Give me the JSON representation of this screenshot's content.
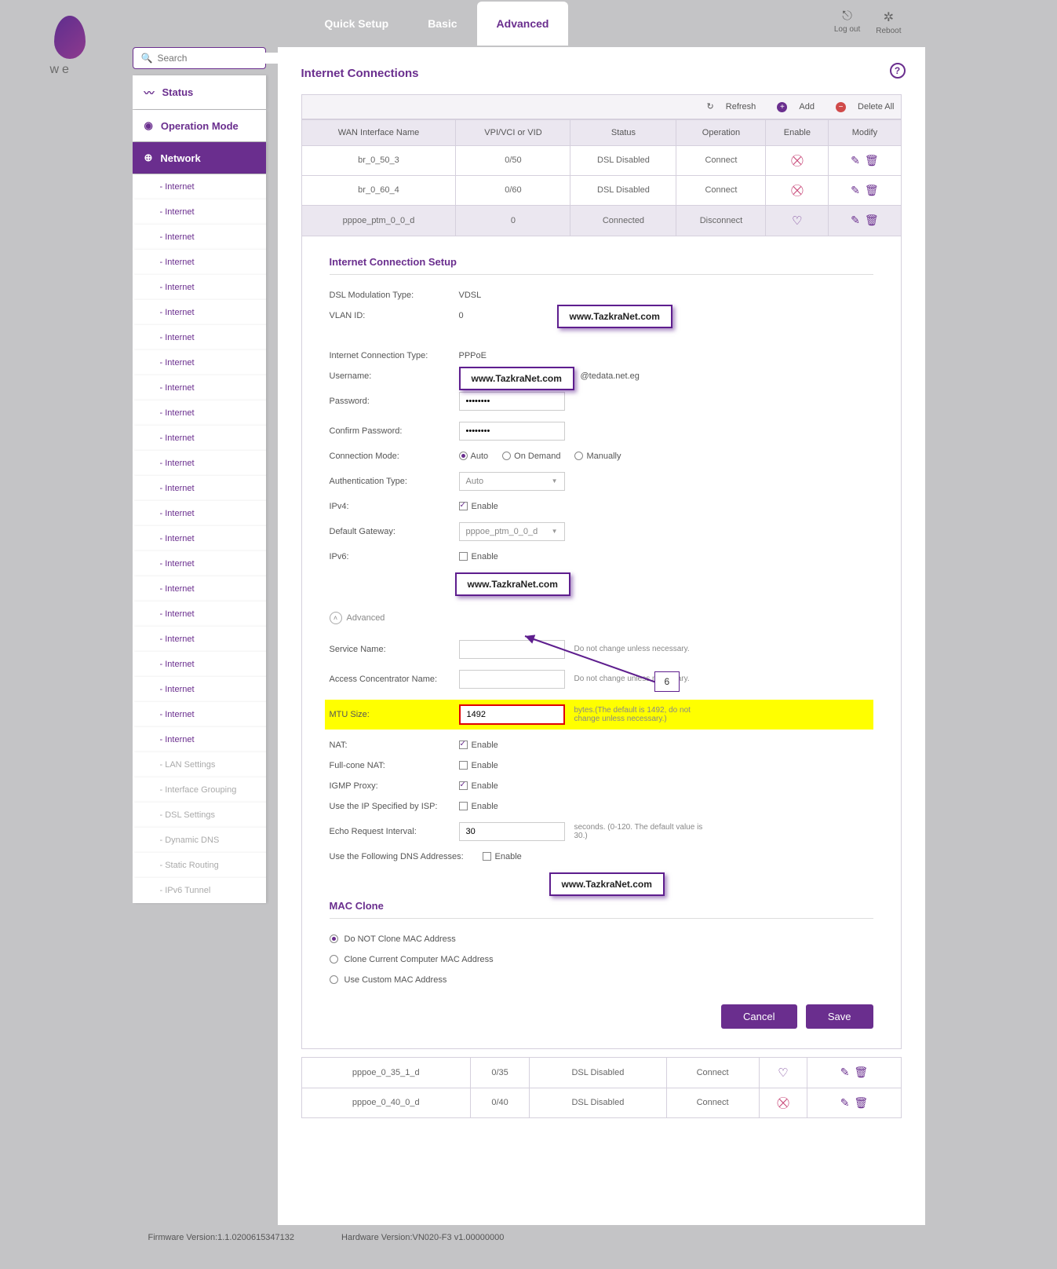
{
  "brand": {
    "name": "we"
  },
  "topnav": {
    "tabs": [
      "Quick Setup",
      "Basic",
      "Advanced"
    ],
    "active_index": 2,
    "actions": {
      "logout": "Log out",
      "reboot": "Reboot"
    }
  },
  "search": {
    "placeholder": "Search"
  },
  "sidebar": {
    "items": [
      {
        "icon": "status",
        "label": "Status"
      },
      {
        "icon": "operation",
        "label": "Operation Mode"
      },
      {
        "icon": "network",
        "label": "Network",
        "active": true
      }
    ],
    "subs": [
      "- Internet",
      "- Internet",
      "- Internet",
      "- Internet",
      "- Internet",
      "- Internet",
      "- Internet",
      "- Internet",
      "- Internet",
      "- Internet",
      "- Internet",
      "- Internet",
      "- Internet",
      "- Internet",
      "- Internet",
      "- Internet",
      "- Internet",
      "- Internet",
      "- Internet",
      "- Internet",
      "- Internet",
      "- Internet",
      "- Internet"
    ],
    "subs_disabled": [
      "- LAN Settings",
      "- Interface Grouping",
      "- DSL Settings",
      "- Dynamic DNS",
      "- Static Routing",
      "- IPv6 Tunnel"
    ]
  },
  "page": {
    "title": "Internet Connections",
    "toolbar": {
      "refresh": "Refresh",
      "add": "Add",
      "delete_all": "Delete All"
    },
    "table": {
      "headers": [
        "WAN Interface Name",
        "VPI/VCI or VID",
        "Status",
        "Operation",
        "Enable",
        "Modify"
      ],
      "rows": [
        {
          "name": "br_0_50_3",
          "vpi": "0/50",
          "status": "DSL Disabled",
          "op": "Connect",
          "op_class": "op-connect",
          "enable": "off"
        },
        {
          "name": "br_0_60_4",
          "vpi": "0/60",
          "status": "DSL Disabled",
          "op": "Connect",
          "op_class": "op-connect",
          "enable": "off"
        },
        {
          "name": "pppoe_ptm_0_0_d",
          "vpi": "0",
          "status": "Connected",
          "op": "Disconnect",
          "op_class": "op-disconnect",
          "enable": "on",
          "selected": true
        }
      ],
      "rows_after": [
        {
          "name": "pppoe_0_35_1_d",
          "vpi": "0/35",
          "status": "DSL Disabled",
          "op": "Connect",
          "op_class": "op-connect",
          "enable": "on"
        },
        {
          "name": "pppoe_0_40_0_d",
          "vpi": "0/40",
          "status": "DSL Disabled",
          "op": "Connect",
          "op_class": "op-connect",
          "enable": "off"
        }
      ]
    },
    "setup": {
      "title": "Internet Connection Setup",
      "dsl_type_label": "DSL Modulation Type:",
      "dsl_type_value": "VDSL",
      "vlan_label": "VLAN ID:",
      "vlan_value": "0",
      "conn_type_label": "Internet Connection Type:",
      "conn_type_value": "PPPoE",
      "username_label": "Username:",
      "username_suffix": "@tedata.net.eg",
      "password_label": "Password:",
      "password_value": "••••••••",
      "confirm_label": "Confirm Password:",
      "confirm_value": "••••••••",
      "connmode_label": "Connection Mode:",
      "connmode_options": [
        "Auto",
        "On Demand",
        "Manually"
      ],
      "connmode_selected": 0,
      "auth_label": "Authentication Type:",
      "auth_value": "Auto",
      "ipv4_label": "IPv4:",
      "ipv4_checked": true,
      "enable_text": "Enable",
      "gateway_label": "Default Gateway:",
      "gateway_value": "pppoe_ptm_0_0_d",
      "ipv6_label": "IPv6:",
      "ipv6_checked": false,
      "advanced_label": "Advanced",
      "service_label": "Service Name:",
      "service_hint": "Do not change unless necessary.",
      "concentrator_label": "Access Concentrator Name:",
      "concentrator_hint": "Do not change unless necessary.",
      "mtu_label": "MTU Size:",
      "mtu_value": "1492",
      "mtu_hint": "bytes.(The default is 1492, do not change unless necessary.)",
      "nat_label": "NAT:",
      "nat_checked": true,
      "fullcone_label": "Full-cone NAT:",
      "fullcone_checked": false,
      "igmp_label": "IGMP Proxy:",
      "igmp_checked": true,
      "ispip_label": "Use the IP Specified by ISP:",
      "ispip_checked": false,
      "echo_label": "Echo Request Interval:",
      "echo_value": "30",
      "echo_hint": "seconds. (0-120. The default value is 30.)",
      "dns_label": "Use the Following DNS Addresses:",
      "dns_checked": false,
      "mac_title": "MAC Clone",
      "mac_options": [
        "Do NOT Clone MAC Address",
        "Clone Current Computer MAC Address",
        "Use Custom MAC Address"
      ],
      "mac_selected": 0,
      "cancel": "Cancel",
      "save": "Save"
    }
  },
  "watermarks": {
    "text": "www.TazkraNet.com"
  },
  "callout": {
    "number": "6"
  },
  "footer": {
    "fw": "Firmware Version:1.1.0200615347132",
    "hw": "Hardware Version:VN020-F3 v1.00000000"
  }
}
